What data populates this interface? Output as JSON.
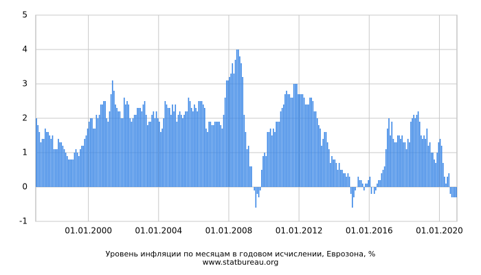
{
  "chart_data": {
    "type": "bar",
    "title": "Уровень инфляции по месяцам в годовом исчислении, Еврозона, %",
    "subtitle": "www.statbureau.org",
    "color": "#3b87e6",
    "grid": true,
    "ylim": [
      -1,
      5
    ],
    "yticks": [
      -1,
      0,
      1,
      2,
      3,
      4,
      5
    ],
    "categories": [
      null,
      null,
      null,
      null,
      null,
      null,
      null,
      null,
      null,
      null,
      null,
      null,
      null,
      null,
      null,
      null,
      null,
      null,
      null,
      null,
      null,
      null,
      null,
      null,
      null,
      null,
      null,
      null,
      null,
      null,
      null,
      null,
      null,
      null,
      null,
      null,
      "01.01.2000",
      null,
      null,
      null,
      null,
      null,
      null,
      null,
      null,
      null,
      null,
      null,
      null,
      null,
      null,
      null,
      null,
      null,
      null,
      null,
      null,
      null,
      null,
      null,
      null,
      null,
      null,
      null,
      null,
      null,
      null,
      null,
      null,
      null,
      null,
      null,
      null,
      null,
      null,
      null,
      null,
      null,
      null,
      null,
      null,
      null,
      null,
      null,
      "01.01.2004",
      null,
      null,
      null,
      null,
      null,
      null,
      null,
      null,
      null,
      null,
      null,
      null,
      null,
      null,
      null,
      null,
      null,
      null,
      null,
      null,
      null,
      null,
      null,
      null,
      null,
      null,
      null,
      null,
      null,
      null,
      null,
      null,
      null,
      null,
      null,
      null,
      null,
      null,
      null,
      null,
      null,
      null,
      null,
      null,
      null,
      null,
      null,
      "01.01.2008",
      null,
      null,
      null,
      null,
      null,
      null,
      null,
      null,
      null,
      null,
      null,
      null,
      null,
      null,
      null,
      null,
      null,
      null,
      null,
      null,
      null,
      null,
      null,
      null,
      null,
      null,
      null,
      null,
      null,
      null,
      null,
      null,
      null,
      null,
      null,
      null,
      null,
      null,
      null,
      null,
      null,
      null,
      null,
      null,
      null,
      null,
      null,
      "01.01.2012",
      null,
      null,
      null,
      null,
      null,
      null,
      null,
      null,
      null,
      null,
      null,
      null,
      null,
      null,
      null,
      null,
      null,
      null,
      null,
      null,
      null,
      null,
      null,
      null,
      null,
      null,
      null,
      null,
      null,
      null,
      null,
      null,
      null,
      null,
      null,
      null,
      null,
      null,
      null,
      null,
      null,
      null,
      null,
      null,
      null,
      null,
      null,
      "01.01.2016",
      null,
      null,
      null,
      null,
      null,
      null,
      null,
      null,
      null,
      null,
      null,
      null,
      null,
      null,
      null,
      null,
      null,
      null,
      null,
      null,
      null,
      null,
      null,
      null,
      null,
      null,
      null,
      null,
      null,
      null,
      null,
      null,
      null,
      null,
      null,
      null,
      null,
      null,
      null,
      null,
      null,
      null,
      null,
      null,
      null,
      null,
      null,
      "01.01.2020",
      null,
      null,
      null,
      null,
      null,
      null,
      null,
      null,
      null,
      null,
      null
    ],
    "values": [
      2.0,
      1.8,
      1.6,
      1.3,
      1.4,
      1.4,
      1.7,
      1.6,
      1.6,
      1.5,
      1.4,
      1.5,
      1.1,
      1.1,
      1.1,
      1.4,
      1.3,
      1.3,
      1.2,
      1.1,
      1.0,
      0.9,
      0.8,
      0.8,
      0.8,
      0.8,
      1.0,
      1.1,
      1.0,
      0.9,
      1.1,
      1.2,
      1.2,
      1.4,
      1.5,
      1.7,
      1.9,
      2.0,
      2.0,
      1.7,
      1.7,
      2.1,
      2.0,
      2.1,
      2.4,
      2.4,
      2.5,
      2.5,
      2.0,
      1.9,
      2.2,
      2.7,
      3.1,
      2.8,
      2.4,
      2.3,
      2.2,
      2.2,
      2.0,
      2.0,
      2.6,
      2.4,
      2.5,
      2.4,
      2.0,
      1.9,
      2.0,
      2.1,
      2.1,
      2.3,
      2.3,
      2.3,
      2.2,
      2.4,
      2.5,
      2.1,
      1.8,
      1.9,
      1.9,
      2.1,
      2.2,
      2.0,
      2.2,
      2.0,
      1.9,
      1.6,
      1.7,
      2.0,
      2.5,
      2.4,
      2.3,
      2.3,
      2.1,
      2.4,
      2.2,
      2.4,
      1.9,
      2.1,
      2.2,
      2.1,
      2.0,
      2.1,
      2.2,
      2.2,
      2.6,
      2.5,
      2.3,
      2.2,
      2.4,
      2.3,
      2.2,
      2.5,
      2.5,
      2.5,
      2.4,
      2.3,
      1.7,
      1.6,
      1.9,
      1.9,
      1.8,
      1.8,
      1.9,
      1.9,
      1.9,
      1.9,
      1.8,
      1.7,
      2.1,
      2.6,
      3.1,
      3.1,
      3.2,
      3.3,
      3.6,
      3.3,
      3.7,
      4.0,
      4.0,
      3.8,
      3.6,
      3.2,
      2.1,
      1.6,
      1.1,
      1.2,
      0.6,
      0.6,
      0.0,
      -0.1,
      -0.6,
      -0.2,
      -0.3,
      -0.1,
      0.5,
      0.9,
      1.0,
      0.9,
      1.6,
      1.6,
      1.7,
      1.5,
      1.7,
      1.6,
      1.9,
      1.9,
      1.9,
      2.2,
      2.3,
      2.4,
      2.7,
      2.8,
      2.7,
      2.7,
      2.6,
      2.6,
      3.0,
      3.0,
      3.0,
      2.7,
      2.7,
      2.7,
      2.7,
      2.6,
      2.4,
      2.4,
      2.4,
      2.6,
      2.6,
      2.5,
      2.2,
      2.2,
      2.0,
      1.8,
      1.7,
      1.2,
      1.4,
      1.6,
      1.6,
      1.3,
      1.1,
      0.7,
      0.9,
      0.8,
      0.8,
      0.7,
      0.5,
      0.7,
      0.5,
      0.5,
      0.4,
      0.4,
      0.3,
      0.4,
      0.3,
      -0.2,
      -0.6,
      -0.3,
      -0.1,
      0.0,
      0.3,
      0.2,
      0.2,
      0.1,
      -0.1,
      0.1,
      0.1,
      0.2,
      0.3,
      -0.2,
      0.0,
      -0.2,
      -0.1,
      0.1,
      0.2,
      0.2,
      0.4,
      0.5,
      0.6,
      1.1,
      1.7,
      2.0,
      1.5,
      1.9,
      1.4,
      1.3,
      1.3,
      1.5,
      1.5,
      1.4,
      1.5,
      1.3,
      1.3,
      1.1,
      1.4,
      1.3,
      1.9,
      2.0,
      2.1,
      2.0,
      2.1,
      2.2,
      1.9,
      1.5,
      1.4,
      1.5,
      1.4,
      1.7,
      1.2,
      1.3,
      1.0,
      1.0,
      0.8,
      0.7,
      1.0,
      1.3,
      1.4,
      1.2,
      0.7,
      0.3,
      0.1,
      0.3,
      0.4,
      -0.2,
      -0.3,
      -0.3,
      -0.3,
      -0.3
    ]
  }
}
